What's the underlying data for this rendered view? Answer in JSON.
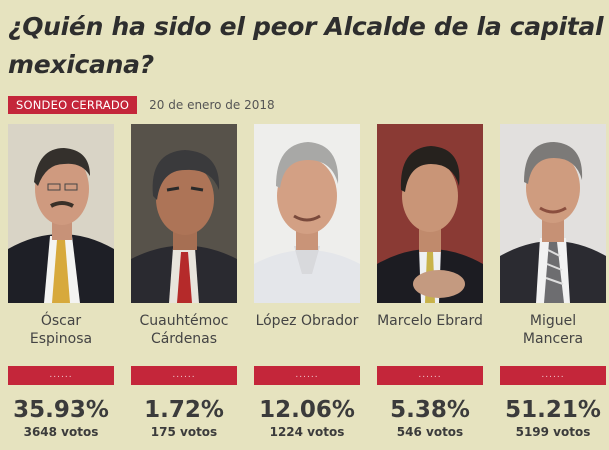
{
  "poll": {
    "title": "¿Quién ha sido el peor Alcalde de la capital mexicana?",
    "status_badge": "SONDEO CERRADO",
    "date": "20 de enero de 2018"
  },
  "candidates": [
    {
      "name": "Óscar Espinosa",
      "percent": "35.93%",
      "percent_value": 35.93,
      "votes": "3648 votos",
      "bar_label": "......"
    },
    {
      "name": "Cuauhtémoc Cárdenas",
      "percent": "1.72%",
      "percent_value": 1.72,
      "votes": "175 votos",
      "bar_label": "......"
    },
    {
      "name": "López Obrador",
      "percent": "12.06%",
      "percent_value": 12.06,
      "votes": "1224 votos",
      "bar_label": "......"
    },
    {
      "name": "Marcelo Ebrard",
      "percent": "5.38%",
      "percent_value": 5.38,
      "votes": "546 votos",
      "bar_label": "......"
    },
    {
      "name": "Miguel Mancera",
      "percent": "51.21%",
      "percent_value": 51.21,
      "votes": "5199 votos",
      "bar_label": "......"
    }
  ],
  "colors": {
    "accent": "#c4263a",
    "background": "#e6e3bf",
    "text": "#3b3b3b"
  }
}
